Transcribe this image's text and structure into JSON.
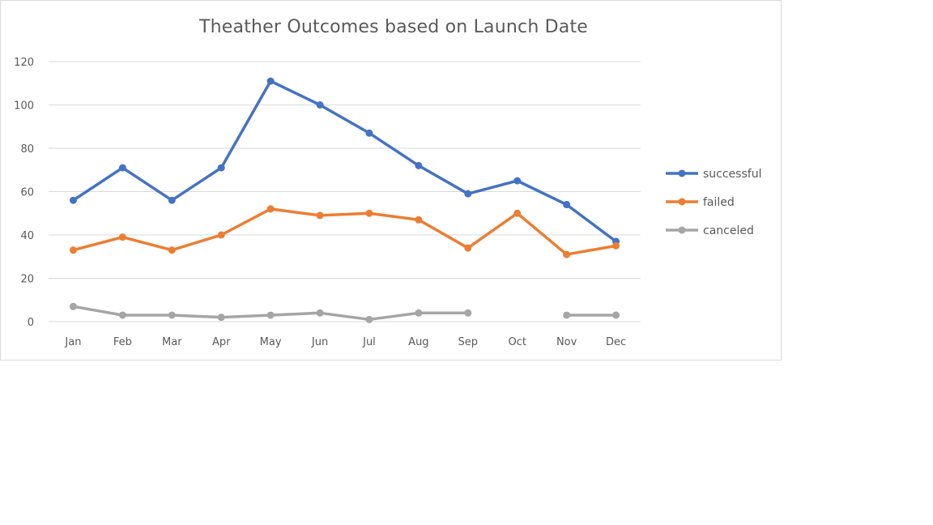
{
  "chart_data": {
    "type": "line",
    "title": "Theather Outcomes based on Launch Date",
    "xlabel": "",
    "ylabel": "",
    "categories": [
      "Jan",
      "Feb",
      "Mar",
      "Apr",
      "May",
      "Jun",
      "Jul",
      "Aug",
      "Sep",
      "Oct",
      "Nov",
      "Dec"
    ],
    "ylim": [
      0,
      120
    ],
    "yticks": [
      0,
      20,
      40,
      60,
      80,
      100,
      120
    ],
    "grid": true,
    "legend_position": "right",
    "series": [
      {
        "name": "successful",
        "color": "#4472C4",
        "values": [
          56,
          71,
          56,
          71,
          111,
          100,
          87,
          72,
          59,
          65,
          54,
          37
        ]
      },
      {
        "name": "failed",
        "color": "#ED7D31",
        "values": [
          33,
          39,
          33,
          40,
          52,
          49,
          50,
          47,
          34,
          50,
          31,
          35
        ]
      },
      {
        "name": "canceled",
        "color": "#A5A5A5",
        "values": [
          7,
          3,
          3,
          2,
          3,
          4,
          1,
          4,
          4,
          null,
          3,
          3
        ]
      }
    ]
  }
}
